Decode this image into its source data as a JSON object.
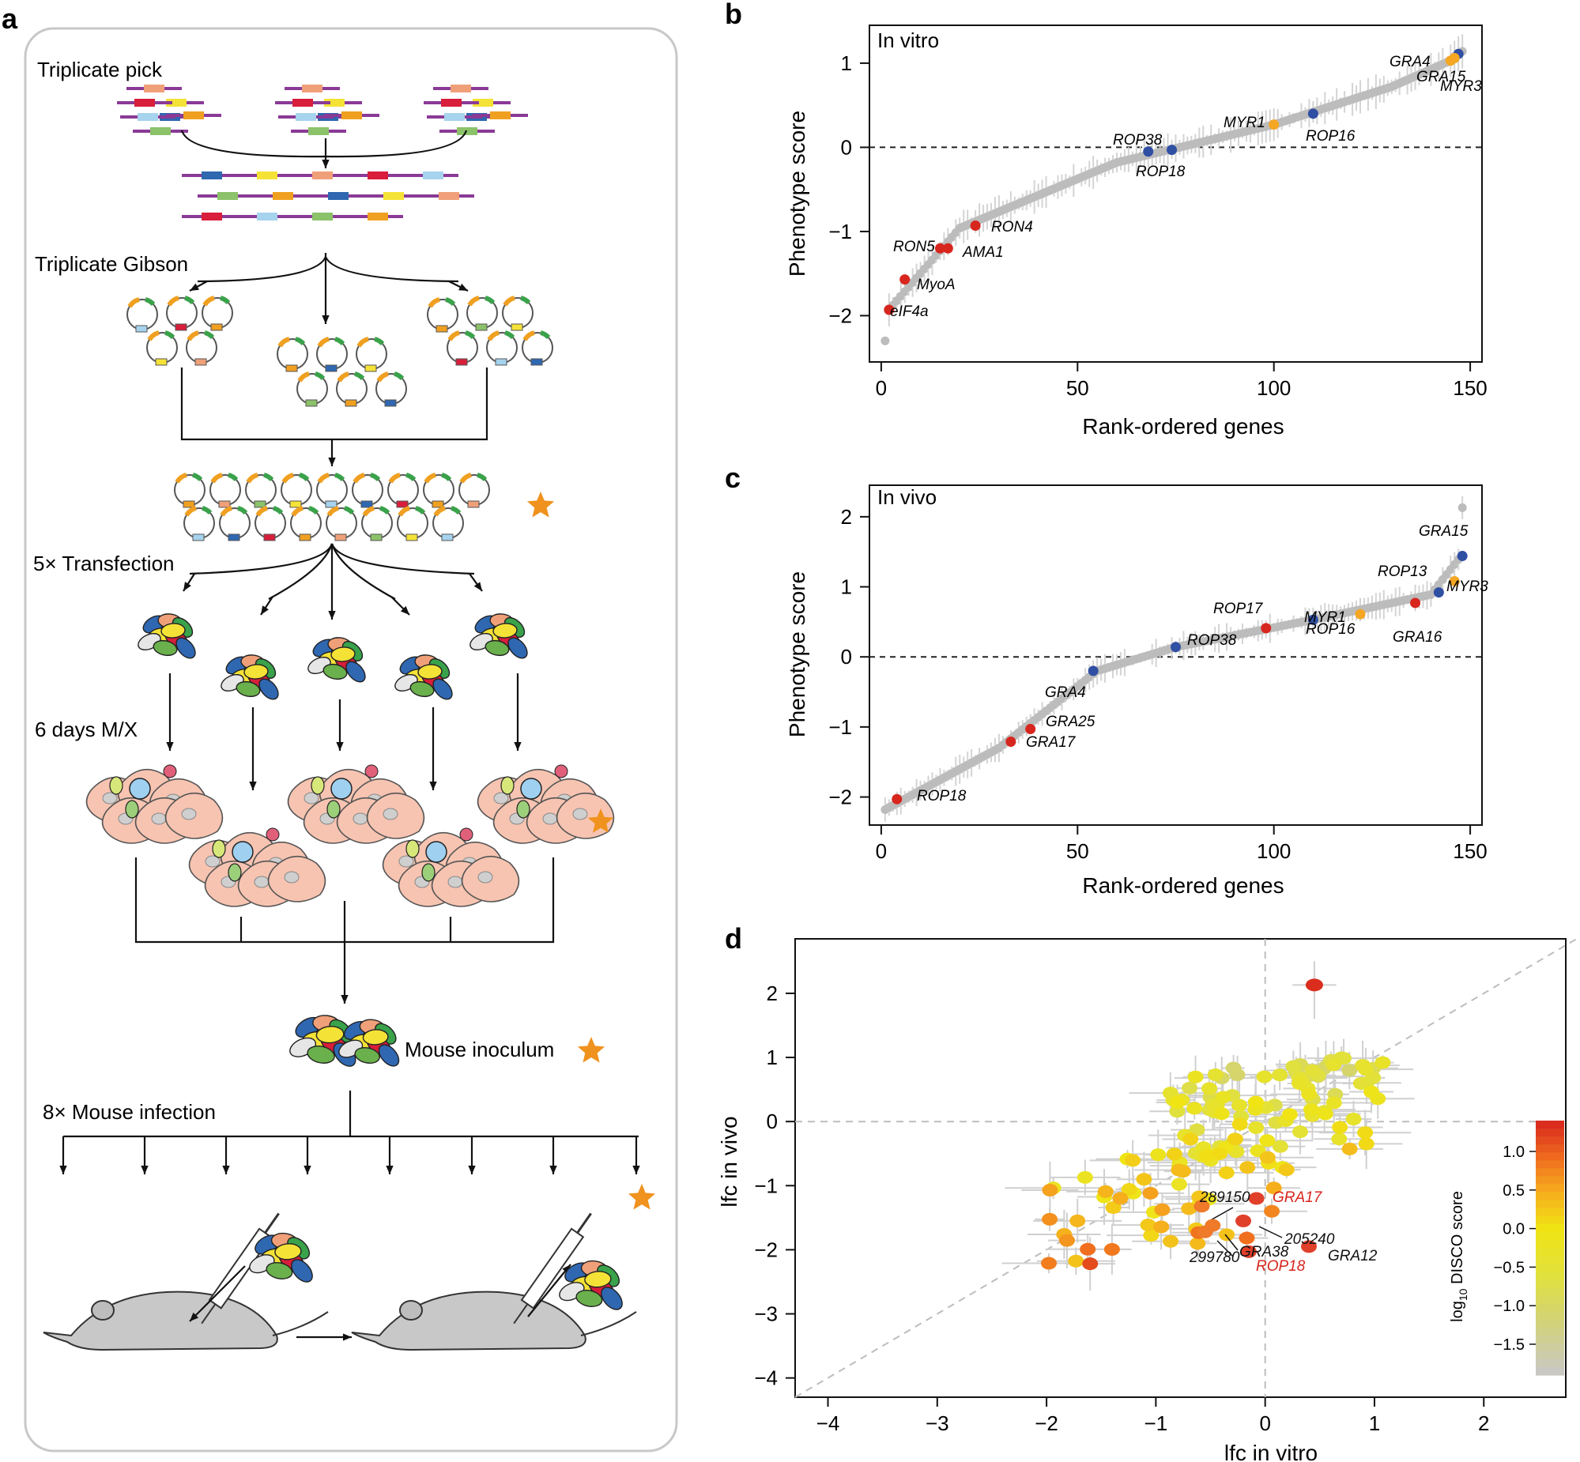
{
  "panel_labels": {
    "a": "a",
    "b": "b",
    "c": "c",
    "d": "d"
  },
  "workflow": {
    "steps": {
      "triplicate_pick": "Triplicate pick",
      "triplicate_gibson": "Triplicate Gibson",
      "transfection": "5× Transfection",
      "days_mx": "6 days M/X",
      "mouse_inoculum": "Mouse inoculum",
      "mouse_infection": "8× Mouse infection"
    },
    "colors": {
      "star": "#f0921e",
      "cell": "#f7c4b1",
      "mouse": "#c8c8c8",
      "frame": "#c8c8c8"
    }
  },
  "chart_data": [
    {
      "id": "b",
      "type": "scatter",
      "title": "In vitro",
      "xlabel": "Rank-ordered genes",
      "ylabel": "Phenotype score",
      "xlim": [
        -3,
        153
      ],
      "ylim": [
        -2.55,
        1.45
      ],
      "xticks": [
        0,
        50,
        100,
        150
      ],
      "yticks": [
        -2,
        -1,
        0,
        1
      ],
      "ytick_labels": [
        "−2",
        "−1",
        "0",
        "1"
      ],
      "reference_line": 0,
      "n_genes": 148,
      "highlights": [
        {
          "gene": "eIF4a",
          "rank": 2,
          "score": -1.93,
          "color": "red"
        },
        {
          "gene": "MyoA",
          "rank": 6,
          "score": -1.57,
          "color": "red"
        },
        {
          "gene": "RON5",
          "rank": 15,
          "score": -1.2,
          "color": "red"
        },
        {
          "gene": "AMA1",
          "rank": 17,
          "score": -1.2,
          "color": "red"
        },
        {
          "gene": "RON4",
          "rank": 24,
          "score": -0.93,
          "color": "red"
        },
        {
          "gene": "ROP38",
          "rank": 68,
          "score": -0.05,
          "color": "blue"
        },
        {
          "gene": "ROP18",
          "rank": 74,
          "score": -0.03,
          "color": "blue"
        },
        {
          "gene": "MYR1",
          "rank": 100,
          "score": 0.27,
          "color": "orange"
        },
        {
          "gene": "ROP16",
          "rank": 110,
          "score": 0.4,
          "color": "blue"
        },
        {
          "gene": "GRA4",
          "rank": 145,
          "score": 1.03,
          "color": "orange"
        },
        {
          "gene": "GRA15",
          "rank": 147,
          "score": 1.11,
          "color": "blue"
        },
        {
          "gene": "MYR3",
          "rank": 146,
          "score": 1.06,
          "color": "orange"
        }
      ]
    },
    {
      "id": "c",
      "type": "scatter",
      "title": "In vivo",
      "xlabel": "Rank-ordered genes",
      "ylabel": "Phenotype score",
      "xlim": [
        -3,
        153
      ],
      "ylim": [
        -2.4,
        2.45
      ],
      "xticks": [
        0,
        50,
        100,
        150
      ],
      "yticks": [
        -2,
        -1,
        0,
        1,
        2
      ],
      "ytick_labels": [
        "−2",
        "−1",
        "0",
        "1",
        "2"
      ],
      "reference_line": 0,
      "n_genes": 148,
      "highlights": [
        {
          "gene": "ROP18",
          "rank": 4,
          "score": -2.03,
          "color": "red"
        },
        {
          "gene": "GRA17",
          "rank": 33,
          "score": -1.21,
          "color": "red"
        },
        {
          "gene": "GRA25",
          "rank": 38,
          "score": -1.03,
          "color": "red"
        },
        {
          "gene": "GRA4",
          "rank": 54,
          "score": -0.2,
          "color": "blue"
        },
        {
          "gene": "ROP38",
          "rank": 75,
          "score": 0.14,
          "color": "blue"
        },
        {
          "gene": "ROP17",
          "rank": 98,
          "score": 0.41,
          "color": "red"
        },
        {
          "gene": "ROP16",
          "rank": 110,
          "score": 0.53,
          "color": "blue"
        },
        {
          "gene": "MYR1",
          "rank": 122,
          "score": 0.61,
          "color": "orange"
        },
        {
          "gene": "GRA16",
          "rank": 136,
          "score": 0.77,
          "color": "red"
        },
        {
          "gene": "MYR3",
          "rank": 142,
          "score": 0.92,
          "color": "blue"
        },
        {
          "gene": "ROP13",
          "rank": 146,
          "score": 1.08,
          "color": "orange"
        },
        {
          "gene": "GRA15",
          "rank": 148,
          "score": 1.44,
          "color": "blue"
        }
      ]
    },
    {
      "id": "d",
      "type": "scatter",
      "xlabel": "lfc in vitro",
      "ylabel": "lfc in vivo",
      "xlim": [
        -4.3,
        2.75
      ],
      "ylim": [
        -4.3,
        2.85
      ],
      "xticks": [
        -4,
        -3,
        -2,
        -1,
        0,
        1,
        2
      ],
      "xtick_labels": [
        "−4",
        "−3",
        "−2",
        "−1",
        "0",
        "1",
        "2"
      ],
      "yticks": [
        -4,
        -3,
        -2,
        -1,
        0,
        1,
        2
      ],
      "ytick_labels": [
        "−4",
        "−3",
        "−2",
        "−1",
        "0",
        "1",
        "2"
      ],
      "colorbar": {
        "title": "log10 DISCO score",
        "ticks": [
          1.0,
          0.5,
          0.0,
          -0.5,
          -1.0,
          -1.5
        ],
        "tick_labels": [
          "1.0",
          "0.5",
          "0.0",
          "−0.5",
          "−1.0",
          "−1.5"
        ],
        "range": [
          -1.9,
          1.4
        ]
      },
      "labeled_points": [
        {
          "label": "GRA17",
          "x": -0.08,
          "y": -1.2,
          "color": "red"
        },
        {
          "label": "ROP18",
          "x": -0.15,
          "y": -2.03,
          "color": "red"
        },
        {
          "label": "GRA12",
          "x": 0.4,
          "y": -1.95,
          "color": "black"
        },
        {
          "label": "289150",
          "x": -0.58,
          "y": -1.32,
          "color": "black"
        },
        {
          "label": "205240",
          "x": -0.2,
          "y": -1.55,
          "color": "black"
        },
        {
          "label": "GRA38",
          "x": -0.48,
          "y": -1.62,
          "color": "black"
        },
        {
          "label": "299780",
          "x": -0.55,
          "y": -1.72,
          "color": "black"
        }
      ]
    }
  ]
}
